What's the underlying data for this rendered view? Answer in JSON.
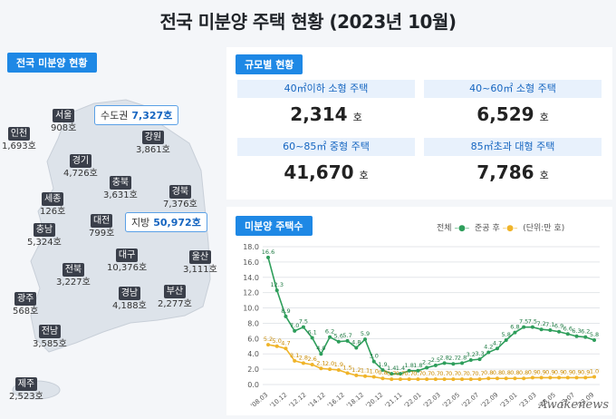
{
  "title": "전국 미분양 주택 현황 (2023년 10월)",
  "left": {
    "section_label": "전국 미분양 현황",
    "summary_capital": {
      "label": "수도권",
      "value": "7,327호"
    },
    "summary_local": {
      "label": "지방",
      "value": "50,972호"
    },
    "regions": [
      {
        "name": "서울",
        "value": "908호"
      },
      {
        "name": "인천",
        "value": "1,693호"
      },
      {
        "name": "강원",
        "value": "3,861호"
      },
      {
        "name": "경기",
        "value": "4,726호"
      },
      {
        "name": "충북",
        "value": "3,631호"
      },
      {
        "name": "경북",
        "value": "7,376호"
      },
      {
        "name": "세종",
        "value": "126호"
      },
      {
        "name": "대전",
        "value": "799호"
      },
      {
        "name": "충남",
        "value": "5,324호"
      },
      {
        "name": "대구",
        "value": "10,376호"
      },
      {
        "name": "울산",
        "value": "3,111호"
      },
      {
        "name": "전북",
        "value": "3,227호"
      },
      {
        "name": "경남",
        "value": "4,188호"
      },
      {
        "name": "부산",
        "value": "2,277호"
      },
      {
        "name": "광주",
        "value": "568호"
      },
      {
        "name": "전남",
        "value": "3,585호"
      },
      {
        "name": "제주",
        "value": "2,523호"
      }
    ]
  },
  "scale": {
    "section_label": "규모별 현황",
    "cells": [
      {
        "label": "40㎡이하 소형 주택",
        "value": "2,314",
        "unit": "호"
      },
      {
        "label": "40~60㎡ 소형 주택",
        "value": "6,529",
        "unit": "호"
      },
      {
        "label": "60~85㎡ 중형 주택",
        "value": "41,670",
        "unit": "호"
      },
      {
        "label": "85㎡초과 대형 주택",
        "value": "7,786",
        "unit": "호"
      }
    ]
  },
  "chart": {
    "section_label": "미분양 주택수",
    "legend_total": "전체",
    "legend_completed": "준공 후",
    "unit_note": "(단위:만 호)"
  },
  "colors": {
    "accent": "#1e88e5",
    "total_series": "#2e9e5b",
    "completed_series": "#f0b429"
  },
  "watermark": "Awakenews",
  "chart_data": {
    "type": "line",
    "ylim": [
      0,
      18
    ],
    "yticks": [
      "0.0",
      "2.0",
      "4.0",
      "6.0",
      "8.0",
      "10.0",
      "12.0",
      "14.0",
      "16.0",
      "18.0"
    ],
    "xticks": [
      "'08.03",
      "'10.12",
      "'12.12",
      "'14.12",
      "'16.12",
      "'18.12",
      "'20.12",
      "'21.11",
      "'22.01",
      "'22.03",
      "'22.05",
      "'22.07",
      "'22.09",
      "'23.01",
      "'23.03",
      "'23.05",
      "'23.07",
      "'23.09"
    ],
    "series": [
      {
        "name": "전체",
        "values": [
          16.6,
          12.3,
          8.9,
          7.0,
          7.5,
          6.1,
          4.0,
          6.2,
          5.6,
          5.7,
          4.8,
          5.9,
          3.0,
          1.9,
          1.4,
          1.4,
          1.8,
          1.8,
          2.2,
          2.5,
          2.8,
          2.7,
          2.8,
          3.2,
          3.3,
          4.2,
          4.7,
          5.8,
          6.8,
          7.5,
          7.5,
          7.2,
          7.1,
          6.9,
          6.6,
          6.3,
          6.2,
          5.8
        ],
        "labels": [
          "16.6",
          "12.3",
          "8.9",
          "7.0",
          "7.5",
          "6.1",
          "4.0",
          "6.2",
          "5.6",
          "5.7",
          "4.8",
          "5.9",
          "3.0",
          "1.9",
          "1.4",
          "1.4",
          "1.8",
          "1.8",
          "2.2",
          "2.5",
          "2.8",
          "2.7",
          "2.8",
          "3.2",
          "3.3",
          "4.2",
          "4.7",
          "5.8",
          "6.8",
          "7.5",
          "7.5",
          "7.2",
          "7.1",
          "6.9",
          "6.6",
          "6.3",
          "6.2",
          "5.8"
        ]
      },
      {
        "name": "준공 후",
        "values": [
          5.2,
          5.0,
          4.7,
          3.1,
          2.8,
          2.6,
          2.1,
          2.0,
          1.9,
          1.5,
          1.2,
          1.1,
          1.0,
          0.8,
          0.7,
          0.7,
          0.7,
          0.7,
          0.7,
          0.7,
          0.7,
          0.7,
          0.7,
          0.7,
          0.7,
          0.8,
          0.8,
          0.8,
          0.8,
          0.8,
          0.9,
          0.9,
          0.9,
          0.9,
          0.9,
          0.9,
          0.9,
          1.0
        ],
        "labels": [
          "5.2",
          "5.0",
          "4.7",
          "3.1",
          "2.8",
          "2.6",
          "2.1",
          "2.0",
          "1.9",
          "1.5",
          "1.2",
          "1.1",
          "1.0",
          "0.8",
          "0.7",
          "0.7",
          "0.7",
          "0.7",
          "0.7",
          "0.7",
          "0.7",
          "0.7",
          "0.7",
          "0.7",
          "0.7",
          "0.8",
          "0.8",
          "0.8",
          "0.8",
          "0.8",
          "0.9",
          "0.9",
          "0.9",
          "0.9",
          "0.9",
          "0.9",
          "0.9",
          "1.0"
        ]
      }
    ]
  }
}
